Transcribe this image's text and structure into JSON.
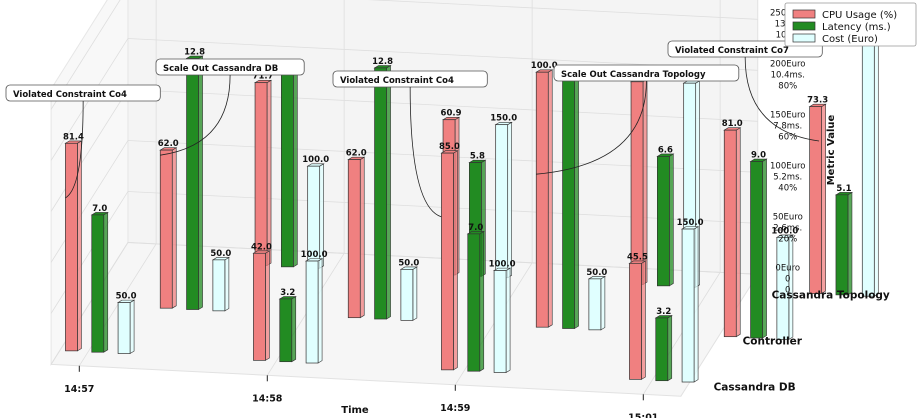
{
  "chart_data": {
    "type": "bar",
    "title": "",
    "xlabel": "Time",
    "zlabel": "Metric Value",
    "time_ticks": [
      "14:57",
      "14:58",
      "14:59",
      "15:01"
    ],
    "depth_categories": [
      "Cassandra DB",
      "Controller",
      "Cassandra Topology"
    ],
    "z_ticks": [
      [
        "0Euro",
        "0",
        "0"
      ],
      [
        "50Euro",
        "2.6ms.",
        "20%"
      ],
      [
        "100Euro",
        "5.2ms.",
        "40%"
      ],
      [
        "150Euro",
        "7.8ms.",
        "60%"
      ],
      [
        "200Euro",
        "10.4ms.",
        "80%"
      ],
      [
        "250Euro",
        "13ms.",
        "100%"
      ]
    ],
    "zlim": [
      0,
      100
    ],
    "series": [
      {
        "name": "CPU Usage (%)",
        "color": "#f08080"
      },
      {
        "name": "Latency (ms.)",
        "color": "#228b22"
      },
      {
        "name": "Cost (Euro)",
        "color": "#e0ffff"
      }
    ],
    "bars": [
      {
        "time": 0,
        "depth": 0,
        "cpu": 81.4,
        "lat": 7.0,
        "cost": 50.0
      },
      {
        "time": 0,
        "depth": 1,
        "cpu": 62.0,
        "lat": 12.8,
        "cost": 50.0
      },
      {
        "time": 0,
        "depth": 2,
        "cpu": 71.7,
        "lat": 9.9,
        "cost": 100.0
      },
      {
        "time": 1,
        "depth": 0,
        "cpu": 42.0,
        "lat": 3.2,
        "cost": 100.0
      },
      {
        "time": 1,
        "depth": 1,
        "cpu": 62.0,
        "lat": 12.8,
        "cost": 50.0
      },
      {
        "time": 1,
        "depth": 2,
        "cpu": 60.9,
        "lat": 5.8,
        "cost": 150.0
      },
      {
        "time": 2,
        "depth": 0,
        "cpu": 85.0,
        "lat": 7.0,
        "cost": 100.0
      },
      {
        "time": 2,
        "depth": 1,
        "cpu": 100.0,
        "lat": 12.8,
        "cost": 50.0
      },
      {
        "time": 2,
        "depth": 2,
        "cpu": 79.5,
        "lat": 6.6,
        "cost": 200.0
      },
      {
        "time": 3,
        "depth": 0,
        "cpu": 45.5,
        "lat": 3.2,
        "cost": 150.0
      },
      {
        "time": 3,
        "depth": 1,
        "cpu": 81.0,
        "lat": 9.0,
        "cost": 100.0
      },
      {
        "time": 3,
        "depth": 2,
        "cpu": 73.3,
        "lat": 5.1,
        "cost": 250.0
      }
    ],
    "annotations": [
      {
        "text": "Violated Constraint Co4",
        "time": 0,
        "depth": 0
      },
      {
        "text": "Scale Out Cassandra DB",
        "time": 0,
        "depth": 1
      },
      {
        "text": "Violated Constraint Co4",
        "time": 2,
        "depth": 0
      },
      {
        "text": "Scale Out Cassandra Topology",
        "time": 2,
        "depth": 1
      },
      {
        "text": "Violated Constraint Co7",
        "time": 3,
        "depth": 2
      }
    ],
    "legend_position": "top-right",
    "grid": true
  }
}
